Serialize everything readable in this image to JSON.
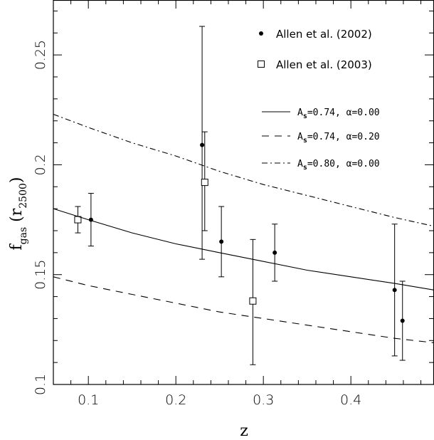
{
  "chart_data": {
    "type": "scatter",
    "xlabel": "z",
    "ylabel": {
      "base": "f",
      "sub": "gas",
      "paren_open": "  (r",
      "paren_sub": "2500",
      "paren_close": ")"
    },
    "xlim": [
      0.06,
      0.495
    ],
    "ylim": [
      0.1,
      0.275
    ],
    "x_ticks": [
      0.1,
      0.2,
      0.3,
      0.4
    ],
    "x_tick_labels": [
      "0.1",
      "0.2",
      "0.3",
      "0.4"
    ],
    "y_ticks": [
      0.1,
      0.15,
      0.2,
      0.25
    ],
    "y_tick_labels": [
      "0.1",
      "0.15",
      "0.2",
      "0.25"
    ],
    "series": [
      {
        "name": "Allen et al. (2002)",
        "marker": "filled-circle",
        "points": [
          {
            "x": 0.103,
            "y": 0.175,
            "ylo": 0.163,
            "yhi": 0.187
          },
          {
            "x": 0.23,
            "y": 0.209,
            "ylo": 0.157,
            "yhi": 0.263
          },
          {
            "x": 0.252,
            "y": 0.165,
            "ylo": 0.149,
            "yhi": 0.181
          },
          {
            "x": 0.313,
            "y": 0.16,
            "ylo": 0.147,
            "yhi": 0.173
          },
          {
            "x": 0.45,
            "y": 0.143,
            "ylo": 0.113,
            "yhi": 0.173
          },
          {
            "x": 0.459,
            "y": 0.129,
            "ylo": 0.111,
            "yhi": 0.147
          }
        ]
      },
      {
        "name": "Allen et al. (2003)",
        "marker": "open-square",
        "points": [
          {
            "x": 0.088,
            "y": 0.175,
            "ylo": 0.169,
            "yhi": 0.181
          },
          {
            "x": 0.233,
            "y": 0.192,
            "ylo": 0.17,
            "yhi": 0.215
          },
          {
            "x": 0.288,
            "y": 0.138,
            "ylo": 0.109,
            "yhi": 0.166
          }
        ]
      }
    ],
    "models": [
      {
        "label_A": "A",
        "label_sub": "s",
        "label_rest": "=0.74,  α=0.00",
        "style": "solid",
        "x": [
          0.06,
          0.1,
          0.15,
          0.2,
          0.25,
          0.3,
          0.35,
          0.4,
          0.45,
          0.495
        ],
        "y": [
          0.18,
          0.175,
          0.169,
          0.164,
          0.16,
          0.156,
          0.152,
          0.149,
          0.146,
          0.143
        ]
      },
      {
        "label_A": "A",
        "label_sub": "s",
        "label_rest": "=0.74,  α=0.20",
        "style": "dashed",
        "x": [
          0.06,
          0.1,
          0.15,
          0.2,
          0.25,
          0.3,
          0.35,
          0.4,
          0.45,
          0.495
        ],
        "y": [
          0.149,
          0.145,
          0.141,
          0.137,
          0.133,
          0.13,
          0.127,
          0.124,
          0.121,
          0.119
        ]
      },
      {
        "label_A": "A",
        "label_sub": "s",
        "label_rest": "=0.80,  α=0.00",
        "style": "dashdot",
        "x": [
          0.06,
          0.1,
          0.15,
          0.2,
          0.25,
          0.3,
          0.35,
          0.4,
          0.45,
          0.495
        ],
        "y": [
          0.223,
          0.217,
          0.21,
          0.204,
          0.197,
          0.191,
          0.186,
          0.181,
          0.176,
          0.172
        ]
      }
    ],
    "legend_placement": "top-right",
    "grid": false
  }
}
